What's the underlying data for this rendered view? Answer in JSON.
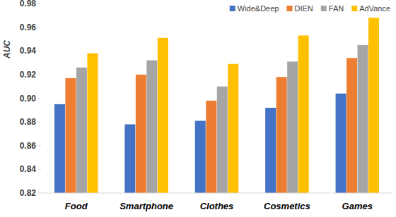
{
  "chart_data": {
    "type": "bar",
    "y_label": "AUC",
    "categories": [
      "Food",
      "Smartphone",
      "Clothes",
      "Cosmetics",
      "Games"
    ],
    "series": [
      {
        "name": "Wide&Deep",
        "color": "#4472c4",
        "values": [
          0.895,
          0.878,
          0.881,
          0.892,
          0.904
        ]
      },
      {
        "name": "DIEN",
        "color": "#ed7d31",
        "values": [
          0.917,
          0.92,
          0.898,
          0.918,
          0.934
        ]
      },
      {
        "name": "FAN",
        "color": "#a5a5a5",
        "values": [
          0.926,
          0.932,
          0.91,
          0.931,
          0.945
        ]
      },
      {
        "name": "AdVance",
        "color": "#ffc000",
        "values": [
          0.938,
          0.951,
          0.929,
          0.953,
          0.968
        ]
      }
    ],
    "ylim": [
      0.82,
      0.98
    ],
    "yticks": [
      0.82,
      0.84,
      0.86,
      0.88,
      {
        "value": 0.9,
        "label": "0.90"
      },
      0.92,
      0.94,
      0.96,
      0.98
    ],
    "grid": false,
    "legend": "top-right"
  }
}
